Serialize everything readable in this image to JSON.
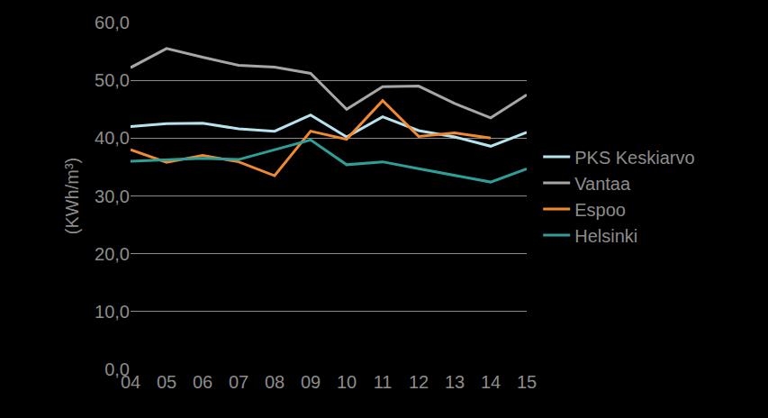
{
  "chart_data": {
    "type": "line",
    "y_label": "(KWh/m³)",
    "categories": [
      "04",
      "05",
      "06",
      "07",
      "08",
      "09",
      "10",
      "11",
      "12",
      "13",
      "14",
      "15"
    ],
    "series": [
      {
        "name": "PKS Keskiarvo",
        "color": "#b7e3ee",
        "values": [
          42.0,
          42.5,
          42.6,
          41.6,
          41.2,
          44.0,
          40.2,
          43.7,
          41.3,
          40.2,
          38.6,
          41.0
        ]
      },
      {
        "name": "Vantaa",
        "color": "#a6a6a6",
        "values": [
          52.2,
          55.5,
          54.0,
          52.6,
          52.3,
          51.2,
          45.0,
          48.9,
          49.0,
          46.0,
          43.5,
          47.5
        ]
      },
      {
        "name": "Espoo",
        "color": "#f08a30",
        "values": [
          38.0,
          35.8,
          37.0,
          35.9,
          33.5,
          41.2,
          39.8,
          46.5,
          40.3,
          40.9,
          40.0,
          null
        ]
      },
      {
        "name": "Helsinki",
        "color": "#2e9e98",
        "values": [
          36.0,
          36.3,
          36.5,
          36.3,
          38.0,
          39.7,
          35.4,
          35.9,
          34.7,
          33.5,
          32.4,
          34.7
        ]
      }
    ],
    "ylim": [
      0,
      60
    ],
    "yticks": [
      {
        "value": 0,
        "label": "0,0"
      },
      {
        "value": 10,
        "label": "10,0"
      },
      {
        "value": 20,
        "label": "20,0"
      },
      {
        "value": 30,
        "label": "30,0"
      },
      {
        "value": 40,
        "label": "40,0"
      },
      {
        "value": 50,
        "label": "50,0"
      },
      {
        "value": 60,
        "label": "60,0"
      }
    ],
    "grid": true,
    "legend": "right"
  }
}
